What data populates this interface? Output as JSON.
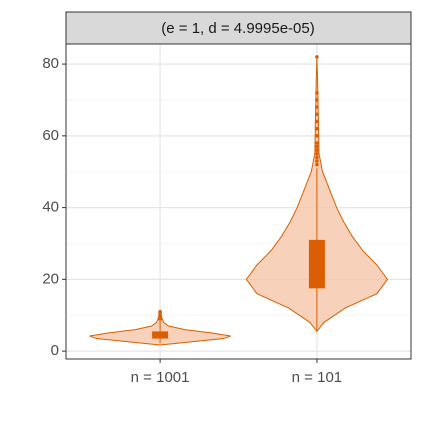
{
  "chart_data": {
    "type": "violin",
    "strip_title": "(e = 1, d = 4.9995e-05)",
    "categories": [
      "n = 1001",
      "n = 101"
    ],
    "color": "#d95f02",
    "fill": "#f5c6a8",
    "ylim": [
      -2.2,
      85.6
    ],
    "yticks": [
      0,
      20,
      40,
      60,
      80
    ],
    "yminor": [
      10,
      30,
      50,
      70
    ],
    "grid": true,
    "violins": [
      {
        "y": [
          1.7,
          2.5,
          3.5,
          4.2,
          5,
          6,
          7,
          8,
          9,
          10.6
        ],
        "width": [
          0,
          0.4,
          0.9,
          1,
          0.75,
          0.35,
          0.12,
          0.05,
          0.03,
          0
        ],
        "box": [
          2.2,
          3.5,
          4.5,
          5.5,
          8.5
        ],
        "outliers": [
          9,
          9.5,
          10,
          10.5,
          11
        ]
      },
      {
        "y": [
          5.5,
          8,
          12,
          16,
          20,
          24,
          28,
          32,
          36,
          40,
          45,
          50,
          55,
          65,
          75,
          82
        ],
        "width": [
          0,
          0.1,
          0.4,
          0.85,
          1,
          0.85,
          0.65,
          0.5,
          0.38,
          0.28,
          0.18,
          0.08,
          0.03,
          0.02,
          0.01,
          0
        ],
        "box": [
          5.5,
          17.5,
          24,
          31,
          51
        ],
        "outliers": [
          52,
          53,
          54,
          55,
          56,
          57,
          58,
          60,
          62,
          64,
          66,
          68,
          70,
          72,
          82
        ]
      }
    ]
  }
}
